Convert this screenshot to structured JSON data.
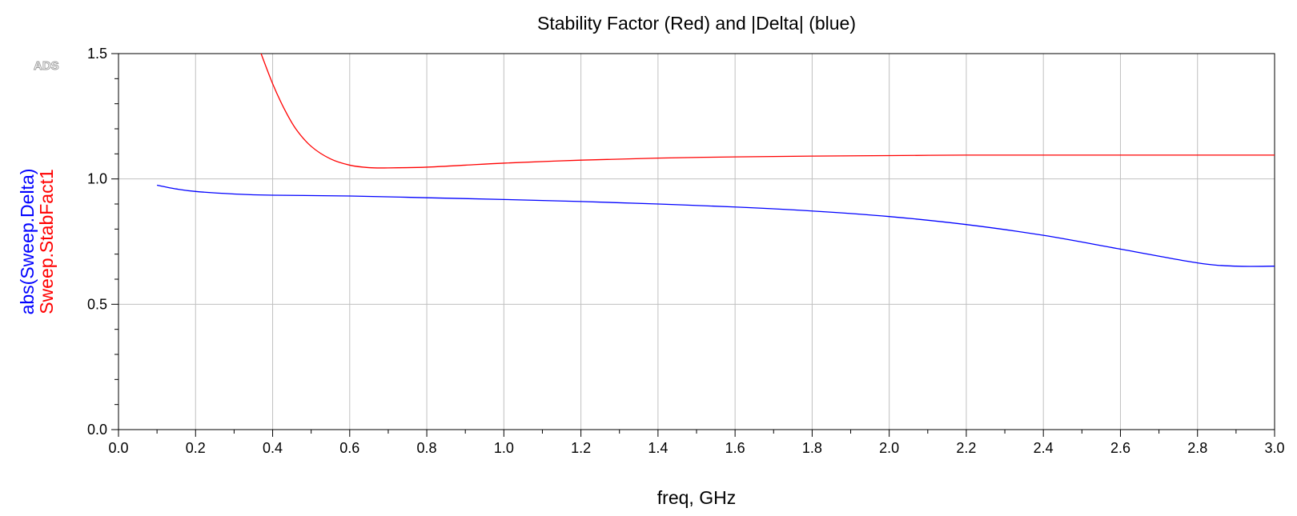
{
  "watermark": "ADS",
  "chart_data": {
    "type": "line",
    "title": "Stability Factor (Red) and |Delta| (blue)",
    "xlabel": "freq, GHz",
    "ylabels": [
      {
        "text": "abs(Sweep.Delta)",
        "color": "#0000ff"
      },
      {
        "text": "Sweep.StabFact1",
        "color": "#ff0000"
      }
    ],
    "xlim": [
      0.0,
      3.0
    ],
    "ylim": [
      0.0,
      1.5
    ],
    "xticks": [
      "0.0",
      "0.2",
      "0.4",
      "0.6",
      "0.8",
      "1.0",
      "1.2",
      "1.4",
      "1.6",
      "1.8",
      "2.0",
      "2.2",
      "2.4",
      "2.6",
      "2.8",
      "3.0"
    ],
    "xtick_values": [
      0.0,
      0.2,
      0.4,
      0.6,
      0.8,
      1.0,
      1.2,
      1.4,
      1.6,
      1.8,
      2.0,
      2.2,
      2.4,
      2.6,
      2.8,
      3.0
    ],
    "yticks": [
      "0.0",
      "0.5",
      "1.0",
      "1.5"
    ],
    "ytick_values": [
      0.0,
      0.5,
      1.0,
      1.5
    ],
    "grid": true,
    "series": [
      {
        "name": "Sweep.StabFact1",
        "color": "#ff0000",
        "x": [
          0.37,
          0.4,
          0.43,
          0.46,
          0.5,
          0.55,
          0.6,
          0.65,
          0.7,
          0.8,
          0.9,
          1.0,
          1.2,
          1.4,
          1.6,
          1.8,
          2.0,
          2.2,
          2.4,
          2.6,
          2.8,
          3.0
        ],
        "y": [
          1.5,
          1.38,
          1.28,
          1.2,
          1.13,
          1.08,
          1.055,
          1.045,
          1.044,
          1.047,
          1.055,
          1.063,
          1.075,
          1.083,
          1.088,
          1.091,
          1.093,
          1.095,
          1.095,
          1.095,
          1.095,
          1.095
        ]
      },
      {
        "name": "abs(Sweep.Delta)",
        "color": "#0000ff",
        "x": [
          0.1,
          0.15,
          0.2,
          0.3,
          0.4,
          0.6,
          0.8,
          1.0,
          1.2,
          1.4,
          1.6,
          1.8,
          2.0,
          2.2,
          2.4,
          2.6,
          2.8,
          2.9,
          3.0
        ],
        "y": [
          0.975,
          0.96,
          0.95,
          0.94,
          0.935,
          0.932,
          0.925,
          0.918,
          0.91,
          0.9,
          0.888,
          0.872,
          0.85,
          0.818,
          0.775,
          0.72,
          0.665,
          0.652,
          0.652
        ]
      }
    ]
  }
}
